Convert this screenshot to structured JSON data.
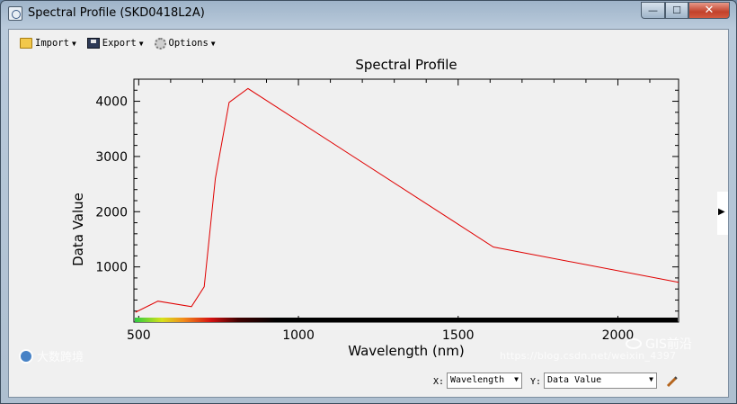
{
  "window": {
    "title": "Spectral Profile (SKD0418L2A)",
    "min_glyph": "—",
    "max_glyph": "☐",
    "close_glyph": "✕"
  },
  "toolbar": {
    "import_label": "Import",
    "export_label": "Export",
    "options_label": "Options",
    "caret": "▼"
  },
  "side": {
    "expand_glyph": "▶"
  },
  "chart_data": {
    "type": "line",
    "title": "Spectral Profile",
    "xlabel": "Wavelength (nm)",
    "ylabel": "Data Value",
    "xlim": [
      485,
      2190
    ],
    "ylim": [
      0,
      4400
    ],
    "xticks": [
      500,
      1000,
      1500,
      2000
    ],
    "yticks": [
      1000,
      2000,
      3000,
      4000
    ],
    "grid": false,
    "series": [
      {
        "color": "#e00000",
        "x": [
          490,
          560,
          665,
          705,
          740,
          783,
          842,
          1610,
          2190
        ],
        "y": [
          180,
          380,
          280,
          640,
          2600,
          3980,
          4230,
          1360,
          720
        ]
      }
    ],
    "colorbar": true
  },
  "bottom": {
    "x_label": "X:",
    "x_value": "Wavelength",
    "y_label": "Y:",
    "y_value": "Data Value",
    "dd_glyph": "▼"
  },
  "watermarks": {
    "left_text": "大数跨境",
    "right_text": "GIS前沿",
    "url_text": "https://blog.csdn.net/weixin_4397"
  }
}
